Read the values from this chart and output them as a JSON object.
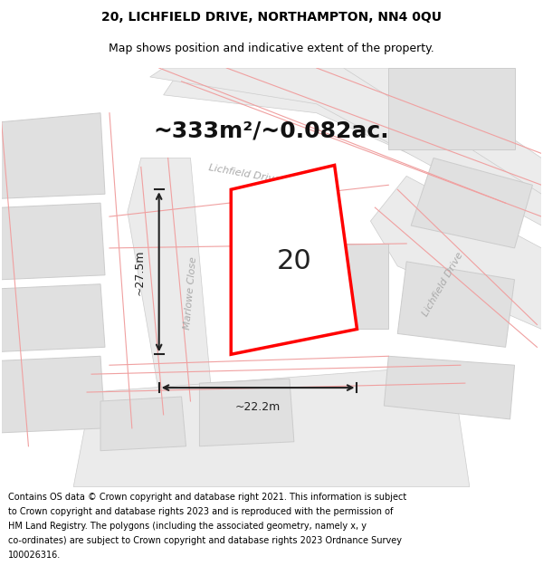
{
  "title_line1": "20, LICHFIELD DRIVE, NORTHAMPTON, NN4 0QU",
  "title_line2": "Map shows position and indicative extent of the property.",
  "area_text": "~333m²/~0.082ac.",
  "label_20": "20",
  "dim_width": "~22.2m",
  "dim_height": "~27.5m",
  "footer_lines": [
    "Contains OS data © Crown copyright and database right 2021. This information is subject",
    "to Crown copyright and database rights 2023 and is reproduced with the permission of",
    "HM Land Registry. The polygons (including the associated geometry, namely x, y",
    "co-ordinates) are subject to Crown copyright and database rights 2023 Ordnance Survey",
    "100026316."
  ],
  "map_bg": "#f0f0f0",
  "property_outline_color": "#ff0000",
  "building_color": "#e0e0e0",
  "dim_color": "#222222",
  "street_label_color": "#aaaaaa",
  "thin_road_color": "#f0a0a0",
  "title_fontsize": 10,
  "subtitle_fontsize": 9,
  "area_fontsize": 18,
  "label_fontsize": 22,
  "footer_fontsize": 7,
  "street_fontsize": 8
}
